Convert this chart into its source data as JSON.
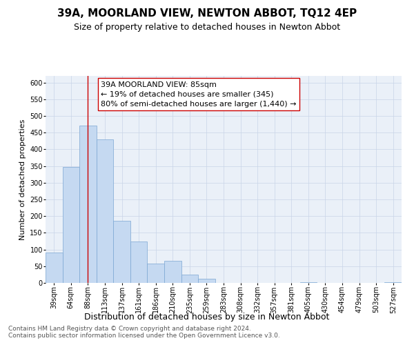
{
  "title": "39A, MOORLAND VIEW, NEWTON ABBOT, TQ12 4EP",
  "subtitle": "Size of property relative to detached houses in Newton Abbot",
  "xlabel": "Distribution of detached houses by size in Newton Abbot",
  "ylabel": "Number of detached properties",
  "footnote1": "Contains HM Land Registry data © Crown copyright and database right 2024.",
  "footnote2": "Contains public sector information licensed under the Open Government Licence v3.0.",
  "bar_labels": [
    "39sqm",
    "64sqm",
    "88sqm",
    "113sqm",
    "137sqm",
    "161sqm",
    "186sqm",
    "210sqm",
    "235sqm",
    "259sqm",
    "283sqm",
    "308sqm",
    "332sqm",
    "357sqm",
    "381sqm",
    "405sqm",
    "430sqm",
    "454sqm",
    "479sqm",
    "503sqm",
    "527sqm"
  ],
  "bar_values": [
    90,
    348,
    472,
    430,
    185,
    123,
    57,
    67,
    25,
    12,
    0,
    0,
    0,
    0,
    0,
    3,
    0,
    0,
    0,
    0,
    3
  ],
  "bar_color": "#c5d9f1",
  "bar_edgecolor": "#7aa6d2",
  "vline_x": 2,
  "vline_color": "#cc0000",
  "ylim": [
    0,
    620
  ],
  "yticks": [
    0,
    50,
    100,
    150,
    200,
    250,
    300,
    350,
    400,
    450,
    500,
    550,
    600
  ],
  "annotation_title": "39A MOORLAND VIEW: 85sqm",
  "annotation_line1": "← 19% of detached houses are smaller (345)",
  "annotation_line2": "80% of semi-detached houses are larger (1,440) →",
  "bg_color": "#ffffff",
  "axes_bg_color": "#eaf0f8",
  "grid_color": "#c8d4e8",
  "title_fontsize": 11,
  "subtitle_fontsize": 9,
  "xlabel_fontsize": 9,
  "ylabel_fontsize": 8,
  "tick_fontsize": 7,
  "annot_title_fontsize": 8,
  "annot_body_fontsize": 8,
  "footnote_fontsize": 6.5
}
